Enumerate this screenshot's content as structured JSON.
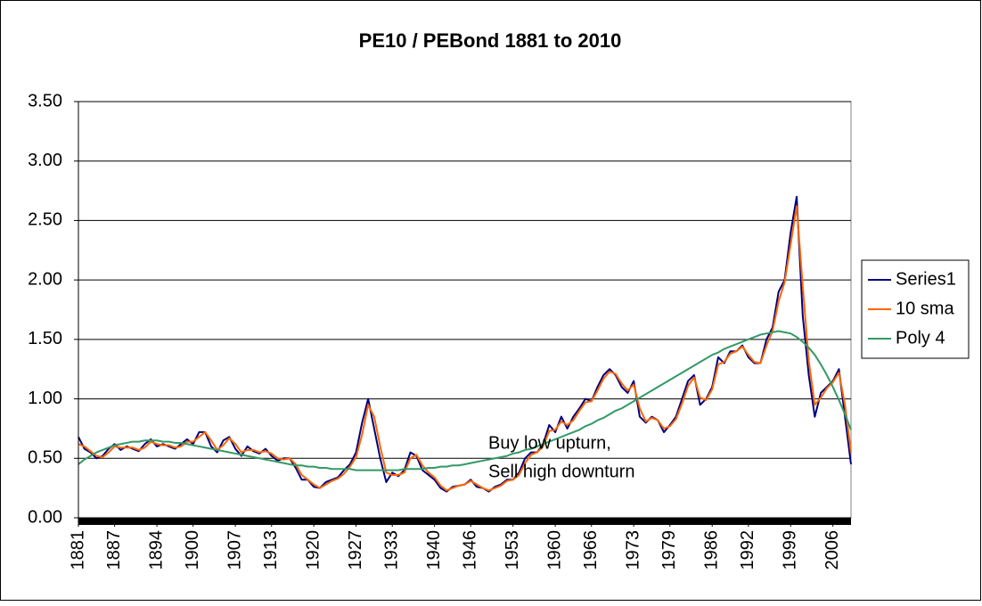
{
  "chart_data": {
    "type": "line",
    "title": "PE10 / PEBond 1881 to 2010",
    "x": [
      1881,
      1882,
      1883,
      1884,
      1885,
      1886,
      1887,
      1888,
      1889,
      1890,
      1891,
      1892,
      1893,
      1894,
      1895,
      1896,
      1897,
      1898,
      1899,
      1900,
      1901,
      1902,
      1903,
      1904,
      1905,
      1906,
      1907,
      1908,
      1909,
      1910,
      1911,
      1912,
      1913,
      1914,
      1915,
      1916,
      1917,
      1918,
      1919,
      1920,
      1921,
      1922,
      1923,
      1924,
      1925,
      1926,
      1927,
      1928,
      1929,
      1930,
      1931,
      1932,
      1933,
      1934,
      1935,
      1936,
      1937,
      1938,
      1939,
      1940,
      1941,
      1942,
      1943,
      1944,
      1945,
      1946,
      1947,
      1948,
      1949,
      1950,
      1951,
      1952,
      1953,
      1954,
      1955,
      1956,
      1957,
      1958,
      1959,
      1960,
      1961,
      1962,
      1963,
      1964,
      1965,
      1966,
      1967,
      1968,
      1969,
      1970,
      1971,
      1972,
      1973,
      1974,
      1975,
      1976,
      1977,
      1978,
      1979,
      1980,
      1981,
      1982,
      1983,
      1984,
      1985,
      1986,
      1987,
      1988,
      1989,
      1990,
      1991,
      1992,
      1993,
      1994,
      1995,
      1996,
      1997,
      1998,
      1999,
      2000,
      2001,
      2002,
      2003,
      2004,
      2005,
      2006,
      2007,
      2008,
      2009
    ],
    "series": [
      {
        "name": "Series1",
        "color": "#000080",
        "values": [
          0.68,
          0.58,
          0.55,
          0.5,
          0.52,
          0.58,
          0.62,
          0.57,
          0.6,
          0.58,
          0.56,
          0.62,
          0.66,
          0.6,
          0.62,
          0.6,
          0.58,
          0.62,
          0.66,
          0.62,
          0.72,
          0.72,
          0.6,
          0.55,
          0.65,
          0.68,
          0.58,
          0.52,
          0.6,
          0.56,
          0.54,
          0.58,
          0.52,
          0.48,
          0.5,
          0.5,
          0.42,
          0.32,
          0.32,
          0.26,
          0.25,
          0.3,
          0.32,
          0.34,
          0.4,
          0.45,
          0.55,
          0.8,
          1.0,
          0.75,
          0.5,
          0.3,
          0.38,
          0.35,
          0.4,
          0.55,
          0.52,
          0.4,
          0.36,
          0.32,
          0.25,
          0.22,
          0.26,
          0.27,
          0.28,
          0.32,
          0.26,
          0.25,
          0.22,
          0.26,
          0.28,
          0.32,
          0.32,
          0.38,
          0.5,
          0.55,
          0.55,
          0.62,
          0.78,
          0.72,
          0.85,
          0.75,
          0.85,
          0.92,
          1.0,
          0.98,
          1.1,
          1.2,
          1.25,
          1.2,
          1.1,
          1.05,
          1.15,
          0.85,
          0.8,
          0.85,
          0.82,
          0.72,
          0.78,
          0.85,
          1.0,
          1.15,
          1.2,
          0.95,
          1.0,
          1.1,
          1.35,
          1.3,
          1.4,
          1.4,
          1.45,
          1.35,
          1.3,
          1.3,
          1.5,
          1.6,
          1.9,
          2.0,
          2.4,
          2.7,
          1.7,
          1.2,
          0.85,
          1.05,
          1.1,
          1.15,
          1.25,
          0.85,
          0.45
        ]
      },
      {
        "name": "10 sma",
        "color": "#ff6600",
        "values": [
          0.62,
          0.6,
          0.56,
          0.52,
          0.51,
          0.55,
          0.6,
          0.59,
          0.59,
          0.59,
          0.57,
          0.59,
          0.64,
          0.62,
          0.61,
          0.61,
          0.59,
          0.6,
          0.64,
          0.64,
          0.68,
          0.72,
          0.65,
          0.57,
          0.61,
          0.67,
          0.62,
          0.55,
          0.57,
          0.57,
          0.55,
          0.56,
          0.54,
          0.5,
          0.49,
          0.5,
          0.45,
          0.36,
          0.32,
          0.28,
          0.25,
          0.28,
          0.31,
          0.33,
          0.37,
          0.43,
          0.51,
          0.7,
          0.95,
          0.85,
          0.6,
          0.38,
          0.36,
          0.36,
          0.38,
          0.5,
          0.53,
          0.44,
          0.38,
          0.34,
          0.27,
          0.23,
          0.25,
          0.27,
          0.28,
          0.31,
          0.28,
          0.25,
          0.23,
          0.25,
          0.27,
          0.31,
          0.32,
          0.36,
          0.46,
          0.53,
          0.55,
          0.6,
          0.73,
          0.74,
          0.81,
          0.78,
          0.82,
          0.9,
          0.97,
          0.98,
          1.07,
          1.17,
          1.23,
          1.21,
          1.13,
          1.07,
          1.12,
          0.92,
          0.81,
          0.84,
          0.82,
          0.75,
          0.77,
          0.83,
          0.96,
          1.11,
          1.18,
          1.01,
          0.99,
          1.08,
          1.29,
          1.31,
          1.38,
          1.4,
          1.44,
          1.37,
          1.31,
          1.3,
          1.45,
          1.57,
          1.82,
          1.98,
          2.3,
          2.62,
          1.95,
          1.32,
          0.95,
          1.01,
          1.09,
          1.14,
          1.22,
          0.95,
          0.55
        ]
      },
      {
        "name": "Poly 4",
        "color": "#339966",
        "values": [
          0.45,
          0.49,
          0.52,
          0.55,
          0.57,
          0.59,
          0.61,
          0.62,
          0.63,
          0.64,
          0.64,
          0.65,
          0.65,
          0.65,
          0.64,
          0.64,
          0.63,
          0.63,
          0.62,
          0.61,
          0.6,
          0.59,
          0.58,
          0.57,
          0.56,
          0.55,
          0.54,
          0.53,
          0.52,
          0.51,
          0.5,
          0.49,
          0.48,
          0.47,
          0.46,
          0.45,
          0.44,
          0.44,
          0.43,
          0.43,
          0.42,
          0.42,
          0.41,
          0.41,
          0.41,
          0.41,
          0.4,
          0.4,
          0.4,
          0.4,
          0.4,
          0.4,
          0.4,
          0.4,
          0.41,
          0.41,
          0.41,
          0.41,
          0.42,
          0.42,
          0.43,
          0.43,
          0.44,
          0.44,
          0.45,
          0.46,
          0.47,
          0.48,
          0.49,
          0.5,
          0.51,
          0.52,
          0.54,
          0.55,
          0.57,
          0.58,
          0.6,
          0.62,
          0.64,
          0.66,
          0.68,
          0.7,
          0.72,
          0.74,
          0.77,
          0.79,
          0.82,
          0.84,
          0.87,
          0.9,
          0.92,
          0.95,
          0.98,
          1.01,
          1.04,
          1.07,
          1.1,
          1.13,
          1.16,
          1.19,
          1.22,
          1.25,
          1.28,
          1.31,
          1.34,
          1.37,
          1.39,
          1.42,
          1.44,
          1.46,
          1.48,
          1.5,
          1.52,
          1.54,
          1.55,
          1.56,
          1.57,
          1.56,
          1.55,
          1.52,
          1.48,
          1.43,
          1.37,
          1.29,
          1.2,
          1.1,
          0.99,
          0.87,
          0.74
        ]
      }
    ],
    "xlim": [
      1881,
      2009
    ],
    "xticks": [
      1881,
      1887,
      1894,
      1900,
      1907,
      1913,
      1920,
      1927,
      1933,
      1940,
      1946,
      1953,
      1960,
      1966,
      1973,
      1979,
      1986,
      1992,
      1999,
      2006
    ],
    "ylim": [
      0,
      3.5
    ],
    "yticks": [
      {
        "value": 0,
        "label": "0.00"
      },
      {
        "value": 0.5,
        "label": "0.50"
      },
      {
        "value": 1,
        "label": "1.00"
      },
      {
        "value": 1.5,
        "label": "1.50"
      },
      {
        "value": 2,
        "label": "2.00"
      },
      {
        "value": 2.5,
        "label": "2.50"
      },
      {
        "value": 3,
        "label": "3.00"
      },
      {
        "value": 3.5,
        "label": "3.50"
      }
    ],
    "grid": true,
    "legend": "right",
    "annotation": [
      "Buy low upturn,",
      "Sell high downturn"
    ]
  }
}
